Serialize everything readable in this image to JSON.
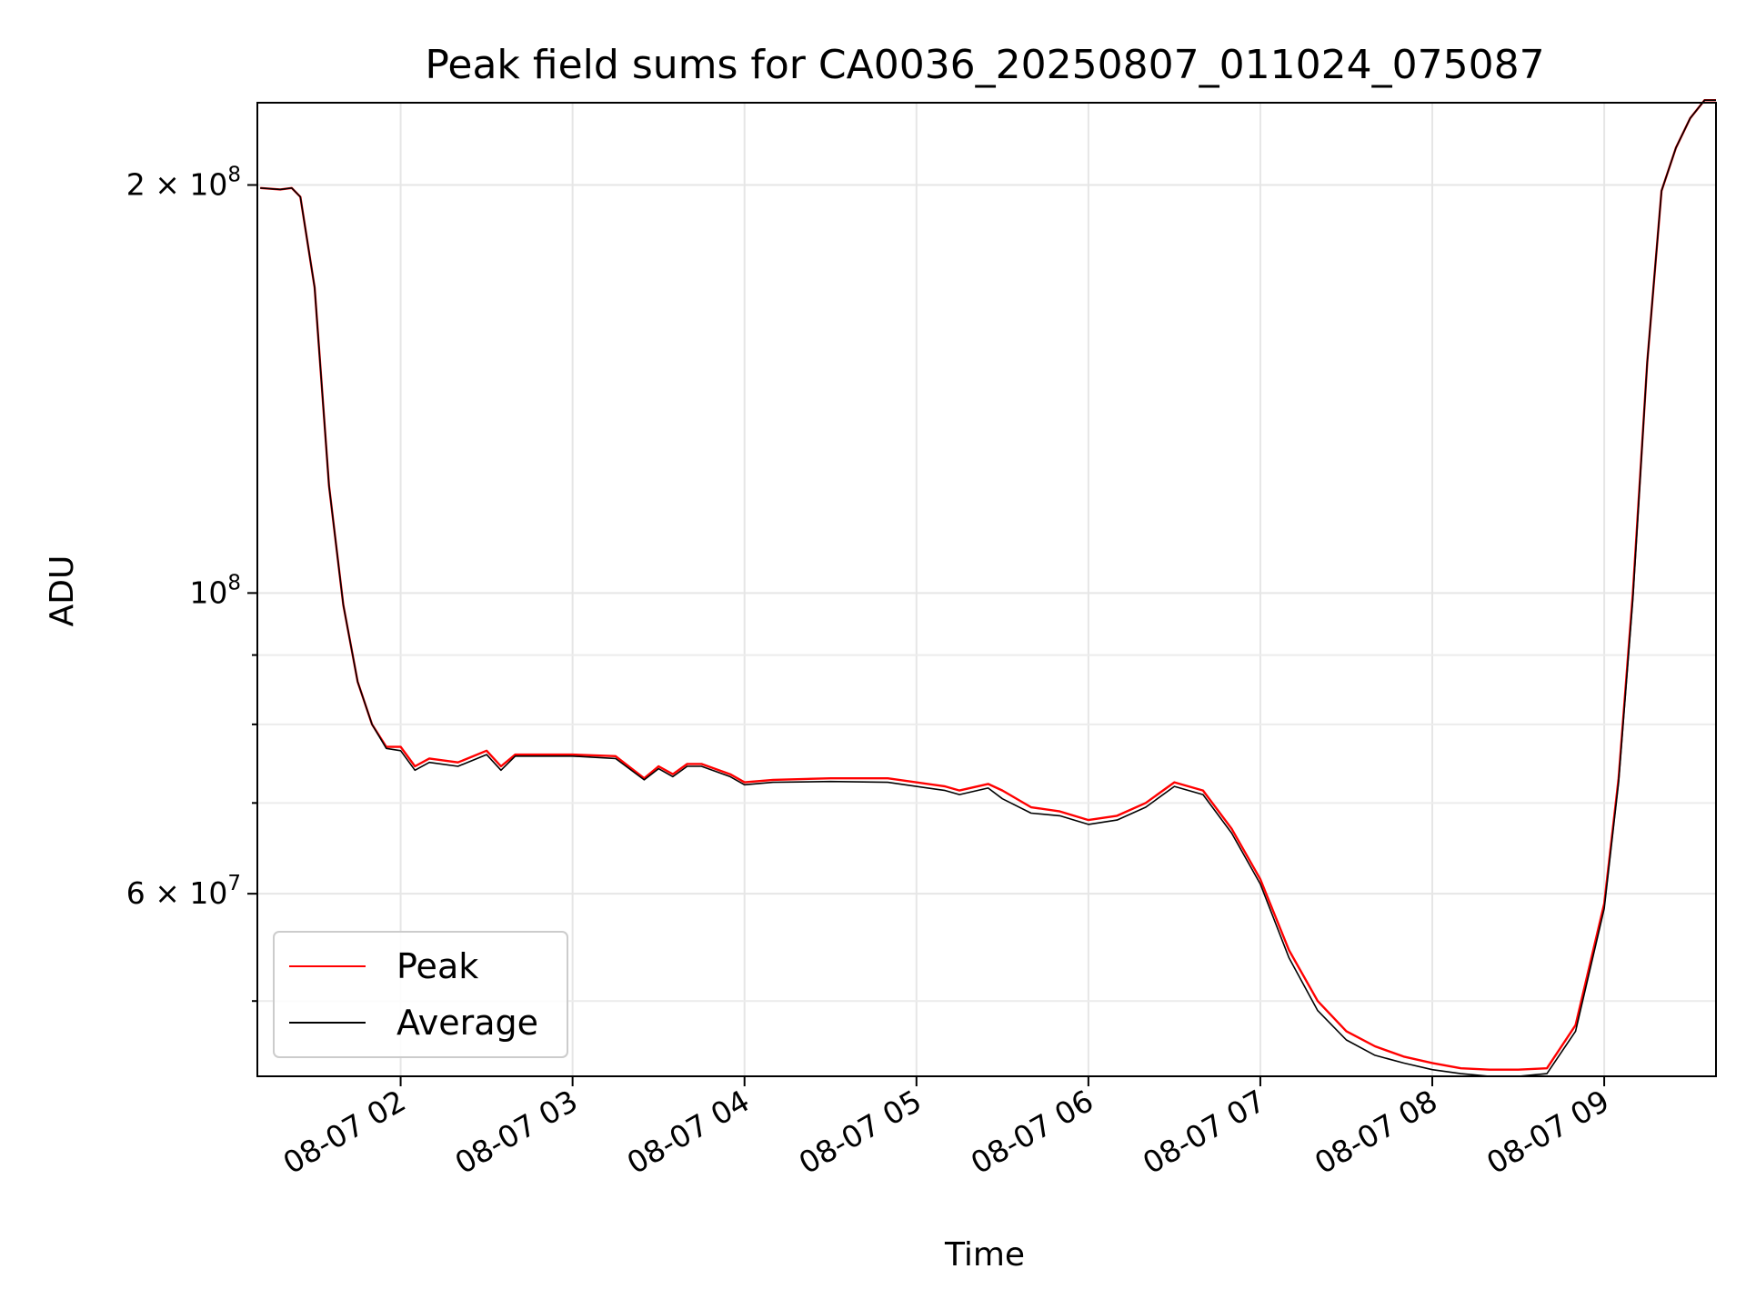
{
  "chart_data": {
    "type": "line",
    "title": "Peak field sums for CA0036_20250807_011024_075087",
    "xlabel": "Time",
    "ylabel": "ADU",
    "yscale": "log",
    "xlim": [
      "2025-08-07T01:10",
      "2025-08-07T09:39"
    ],
    "ylim": [
      44000000,
      230000000
    ],
    "grid": true,
    "legend_position": "lower-left",
    "x_ticks": [
      {
        "label": "08-07 02",
        "value": "2025-08-07T02:00"
      },
      {
        "label": "08-07 03",
        "value": "2025-08-07T03:00"
      },
      {
        "label": "08-07 04",
        "value": "2025-08-07T04:00"
      },
      {
        "label": "08-07 05",
        "value": "2025-08-07T05:00"
      },
      {
        "label": "08-07 06",
        "value": "2025-08-07T06:00"
      },
      {
        "label": "08-07 07",
        "value": "2025-08-07T07:00"
      },
      {
        "label": "08-07 08",
        "value": "2025-08-07T08:00"
      },
      {
        "label": "08-07 09",
        "value": "2025-08-07T09:00"
      }
    ],
    "y_ticks": [
      {
        "label_base": "2 × 10",
        "label_exp": "8",
        "value": 200000000
      },
      {
        "label_base": "10",
        "label_exp": "8",
        "value": 100000000
      },
      {
        "label_base": "6 × 10",
        "label_exp": "7",
        "value": 60000000
      }
    ],
    "y_minor_ticks": [
      50000000,
      70000000,
      80000000,
      90000000
    ],
    "x": [
      "2025-08-07T01:11",
      "2025-08-07T01:18",
      "2025-08-07T01:22",
      "2025-08-07T01:25",
      "2025-08-07T01:30",
      "2025-08-07T01:35",
      "2025-08-07T01:40",
      "2025-08-07T01:45",
      "2025-08-07T01:50",
      "2025-08-07T01:55",
      "2025-08-07T02:00",
      "2025-08-07T02:05",
      "2025-08-07T02:10",
      "2025-08-07T02:20",
      "2025-08-07T02:30",
      "2025-08-07T02:35",
      "2025-08-07T02:40",
      "2025-08-07T02:50",
      "2025-08-07T03:00",
      "2025-08-07T03:15",
      "2025-08-07T03:25",
      "2025-08-07T03:30",
      "2025-08-07T03:35",
      "2025-08-07T03:40",
      "2025-08-07T03:45",
      "2025-08-07T03:55",
      "2025-08-07T04:00",
      "2025-08-07T04:10",
      "2025-08-07T04:30",
      "2025-08-07T04:50",
      "2025-08-07T05:10",
      "2025-08-07T05:15",
      "2025-08-07T05:25",
      "2025-08-07T05:30",
      "2025-08-07T05:40",
      "2025-08-07T05:50",
      "2025-08-07T06:00",
      "2025-08-07T06:10",
      "2025-08-07T06:20",
      "2025-08-07T06:30",
      "2025-08-07T06:40",
      "2025-08-07T06:50",
      "2025-08-07T07:00",
      "2025-08-07T07:10",
      "2025-08-07T07:20",
      "2025-08-07T07:30",
      "2025-08-07T07:40",
      "2025-08-07T07:50",
      "2025-08-07T08:00",
      "2025-08-07T08:10",
      "2025-08-07T08:20",
      "2025-08-07T08:30",
      "2025-08-07T08:40",
      "2025-08-07T08:50",
      "2025-08-07T09:00",
      "2025-08-07T09:05",
      "2025-08-07T09:10",
      "2025-08-07T09:15",
      "2025-08-07T09:20",
      "2025-08-07T09:25",
      "2025-08-07T09:30",
      "2025-08-07T09:35",
      "2025-08-07T09:39"
    ],
    "series": [
      {
        "name": "Peak",
        "color": "#ff0000",
        "values": [
          199000000,
          198500000,
          199000000,
          196000000,
          168000000,
          120000000,
          98000000,
          86000000,
          80000000,
          77000000,
          77000000,
          74500000,
          75500000,
          75000000,
          76500000,
          74500000,
          76000000,
          76000000,
          76000000,
          75800000,
          73000000,
          74500000,
          73500000,
          74800000,
          74800000,
          73500000,
          72500000,
          72800000,
          73000000,
          73000000,
          72000000,
          71500000,
          72300000,
          71500000,
          69500000,
          69000000,
          68000000,
          68500000,
          70000000,
          72500000,
          71500000,
          67000000,
          61500000,
          54500000,
          50000000,
          47500000,
          46300000,
          45500000,
          45000000,
          44600000,
          44500000,
          44500000,
          44600000,
          48000000,
          59000000,
          73000000,
          100000000,
          148000000,
          198000000,
          213000000,
          224000000,
          231000000,
          231000000
        ]
      },
      {
        "name": "Average",
        "color": "#000000",
        "values": [
          199000000,
          198500000,
          199000000,
          196000000,
          168000000,
          120000000,
          98000000,
          86000000,
          80000000,
          76800000,
          76500000,
          74000000,
          75000000,
          74500000,
          76000000,
          74000000,
          75800000,
          75800000,
          75800000,
          75500000,
          72800000,
          74200000,
          73200000,
          74500000,
          74500000,
          73200000,
          72200000,
          72500000,
          72600000,
          72500000,
          71500000,
          71000000,
          71800000,
          70500000,
          68800000,
          68500000,
          67500000,
          68000000,
          69500000,
          72000000,
          71000000,
          66500000,
          61000000,
          53800000,
          49200000,
          46800000,
          45600000,
          45000000,
          44500000,
          44200000,
          44000000,
          44000000,
          44200000,
          47500000,
          58500000,
          72500000,
          99000000,
          148000000,
          198000000,
          213000000,
          224000000,
          231000000,
          231000000
        ]
      }
    ]
  }
}
